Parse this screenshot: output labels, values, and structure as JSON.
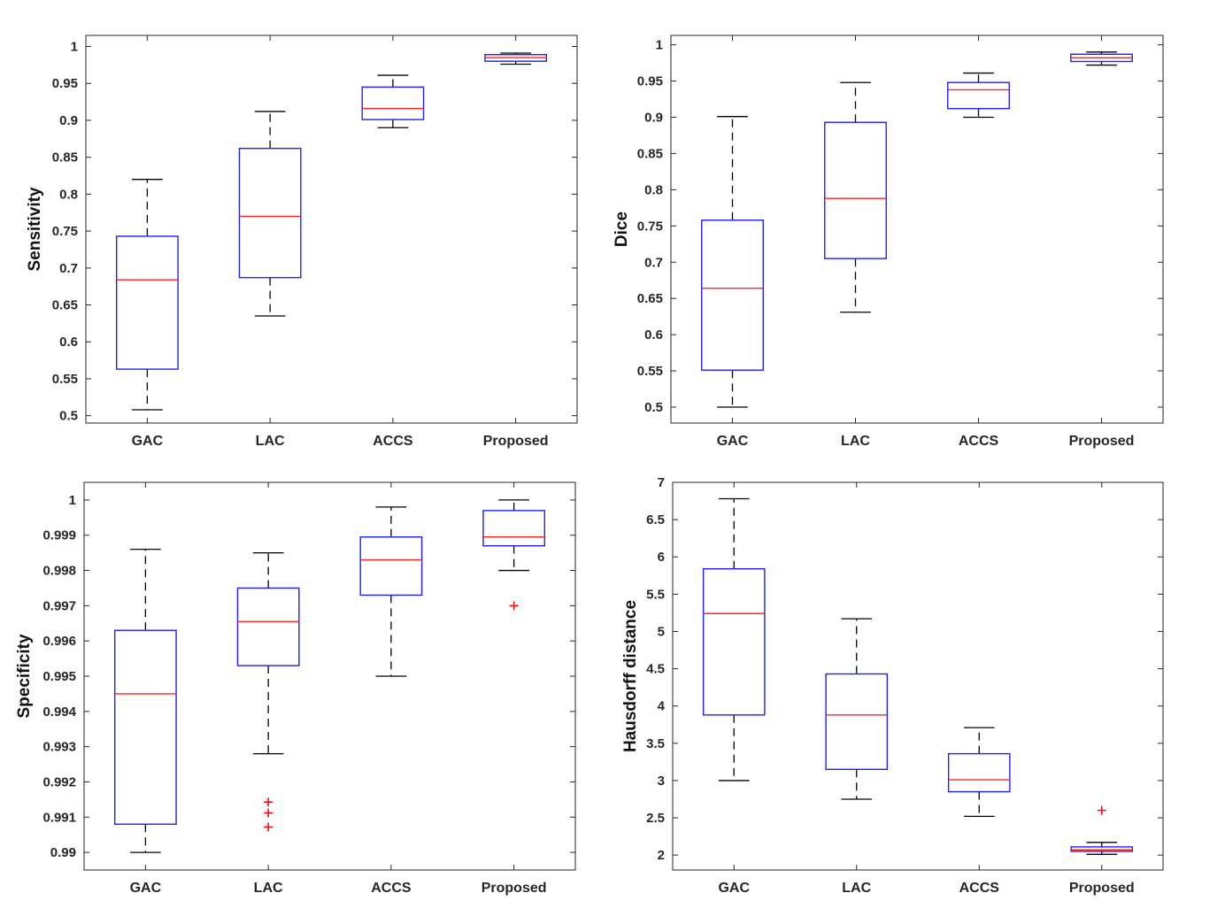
{
  "colors": {
    "box": "#1f1fff",
    "median": "#ff2020",
    "whisker": "#000000",
    "outlier": "#ff0000",
    "axes": "#262626"
  },
  "chart_data": [
    {
      "type": "box",
      "ylabel": "Sensitivity",
      "categories": [
        "GAC",
        "LAC",
        "ACCS",
        "Proposed"
      ],
      "ylim": [
        0.49,
        1.015
      ],
      "yticks": [
        0.5,
        0.55,
        0.6,
        0.65,
        0.7,
        0.75,
        0.8,
        0.85,
        0.9,
        0.95,
        1
      ],
      "ytick_labels": [
        "0.5",
        "0.55",
        "0.6",
        "0.65",
        "0.7",
        "0.75",
        "0.8",
        "0.85",
        "0.9",
        "0.95",
        "1"
      ],
      "boxes": [
        {
          "category": "GAC",
          "whisker_low": 0.508,
          "q1": 0.563,
          "median": 0.684,
          "q3": 0.743,
          "whisker_high": 0.82,
          "outliers": []
        },
        {
          "category": "LAC",
          "whisker_low": 0.635,
          "q1": 0.687,
          "median": 0.77,
          "q3": 0.862,
          "whisker_high": 0.912,
          "outliers": []
        },
        {
          "category": "ACCS",
          "whisker_low": 0.89,
          "q1": 0.901,
          "median": 0.916,
          "q3": 0.945,
          "whisker_high": 0.961,
          "outliers": []
        },
        {
          "category": "Proposed",
          "whisker_low": 0.976,
          "q1": 0.98,
          "median": 0.985,
          "q3": 0.989,
          "whisker_high": 0.991,
          "outliers": []
        }
      ]
    },
    {
      "type": "box",
      "ylabel": "Dice",
      "categories": [
        "GAC",
        "LAC",
        "ACCS",
        "Proposed"
      ],
      "ylim": [
        0.478,
        1.013
      ],
      "yticks": [
        0.5,
        0.55,
        0.6,
        0.65,
        0.7,
        0.75,
        0.8,
        0.85,
        0.9,
        0.95,
        1
      ],
      "ytick_labels": [
        "0.5",
        "0.55",
        "0.6",
        "0.65",
        "0.7",
        "0.75",
        "0.8",
        "0.85",
        "0.9",
        "0.95",
        "1"
      ],
      "boxes": [
        {
          "category": "GAC",
          "whisker_low": 0.5,
          "q1": 0.551,
          "median": 0.664,
          "q3": 0.758,
          "whisker_high": 0.901,
          "outliers": []
        },
        {
          "category": "LAC",
          "whisker_low": 0.631,
          "q1": 0.705,
          "median": 0.788,
          "q3": 0.893,
          "whisker_high": 0.948,
          "outliers": []
        },
        {
          "category": "ACCS",
          "whisker_low": 0.9,
          "q1": 0.912,
          "median": 0.938,
          "q3": 0.948,
          "whisker_high": 0.961,
          "outliers": []
        },
        {
          "category": "Proposed",
          "whisker_low": 0.972,
          "q1": 0.977,
          "median": 0.982,
          "q3": 0.987,
          "whisker_high": 0.99,
          "outliers": []
        }
      ]
    },
    {
      "type": "box",
      "ylabel": "Specificity",
      "categories": [
        "GAC",
        "LAC",
        "ACCS",
        "Proposed"
      ],
      "ylim": [
        0.9895,
        1.0005
      ],
      "yticks": [
        0.99,
        0.991,
        0.992,
        0.993,
        0.994,
        0.995,
        0.996,
        0.997,
        0.998,
        0.999,
        1
      ],
      "ytick_labels": [
        "0.99",
        "0.991",
        "0.992",
        "0.993",
        "0.994",
        "0.995",
        "0.996",
        "0.997",
        "0.998",
        "0.999",
        "1"
      ],
      "boxes": [
        {
          "category": "GAC",
          "whisker_low": 0.99,
          "q1": 0.9908,
          "median": 0.9945,
          "q3": 0.9963,
          "whisker_high": 0.9986,
          "outliers": []
        },
        {
          "category": "LAC",
          "whisker_low": 0.9928,
          "q1": 0.9953,
          "median": 0.99655,
          "q3": 0.9975,
          "whisker_high": 0.9985,
          "outliers": [
            0.99143,
            0.99112,
            0.99072
          ]
        },
        {
          "category": "ACCS",
          "whisker_low": 0.995,
          "q1": 0.9973,
          "median": 0.9983,
          "q3": 0.99895,
          "whisker_high": 0.9998,
          "outliers": []
        },
        {
          "category": "Proposed",
          "whisker_low": 0.998,
          "q1": 0.9987,
          "median": 0.99895,
          "q3": 0.9997,
          "whisker_high": 1.0,
          "outliers": [
            0.997
          ]
        }
      ]
    },
    {
      "type": "box",
      "ylabel": "Hausdorff distance",
      "categories": [
        "GAC",
        "LAC",
        "ACCS",
        "Proposed"
      ],
      "ylim": [
        1.8,
        7.0
      ],
      "yticks": [
        2,
        2.5,
        3,
        3.5,
        4,
        4.5,
        5,
        5.5,
        6,
        6.5,
        7
      ],
      "ytick_labels": [
        "2",
        "2.5",
        "3",
        "3.5",
        "4",
        "4.5",
        "5",
        "5.5",
        "6",
        "6.5",
        "7"
      ],
      "boxes": [
        {
          "category": "GAC",
          "whisker_low": 3.0,
          "q1": 3.88,
          "median": 5.24,
          "q3": 5.84,
          "whisker_high": 6.78,
          "outliers": []
        },
        {
          "category": "LAC",
          "whisker_low": 2.75,
          "q1": 3.15,
          "median": 3.88,
          "q3": 4.43,
          "whisker_high": 5.17,
          "outliers": []
        },
        {
          "category": "ACCS",
          "whisker_low": 2.52,
          "q1": 2.85,
          "median": 3.01,
          "q3": 3.36,
          "whisker_high": 3.71,
          "outliers": []
        },
        {
          "category": "Proposed",
          "whisker_low": 2.01,
          "q1": 2.05,
          "median": 2.07,
          "q3": 2.11,
          "whisker_high": 2.17,
          "outliers": [
            2.6
          ]
        }
      ]
    }
  ]
}
